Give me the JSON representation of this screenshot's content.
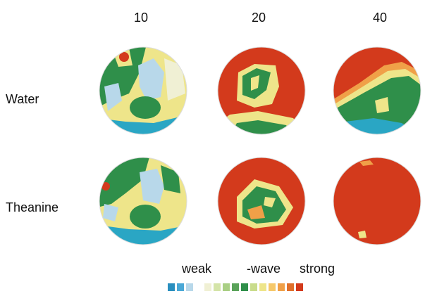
{
  "columns": [
    "10",
    "20",
    "40"
  ],
  "rows": [
    "Water",
    "Theanine"
  ],
  "scale": {
    "weak": "weak",
    "wave": "-wave",
    "strong": "strong"
  },
  "colors": {
    "cyan": "#2aa6c4",
    "light_blue": "#b8d8ea",
    "pale": "#f0f0d4",
    "light_green": "#a9cf84",
    "green": "#2f8f4a",
    "yellow": "#eee58a",
    "orange": "#f0a048",
    "red": "#d33a1c"
  },
  "color_bar": [
    "#2a8fbf",
    "#4aa8d6",
    "#b8d8ea",
    "#ffffff",
    "#f0f0d4",
    "#d4e4a8",
    "#a9cf84",
    "#5aa35a",
    "#2f8f4a",
    "#c9dc8c",
    "#eee58a",
    "#f6c86a",
    "#f0a048",
    "#e0702c",
    "#d33a1c"
  ]
}
